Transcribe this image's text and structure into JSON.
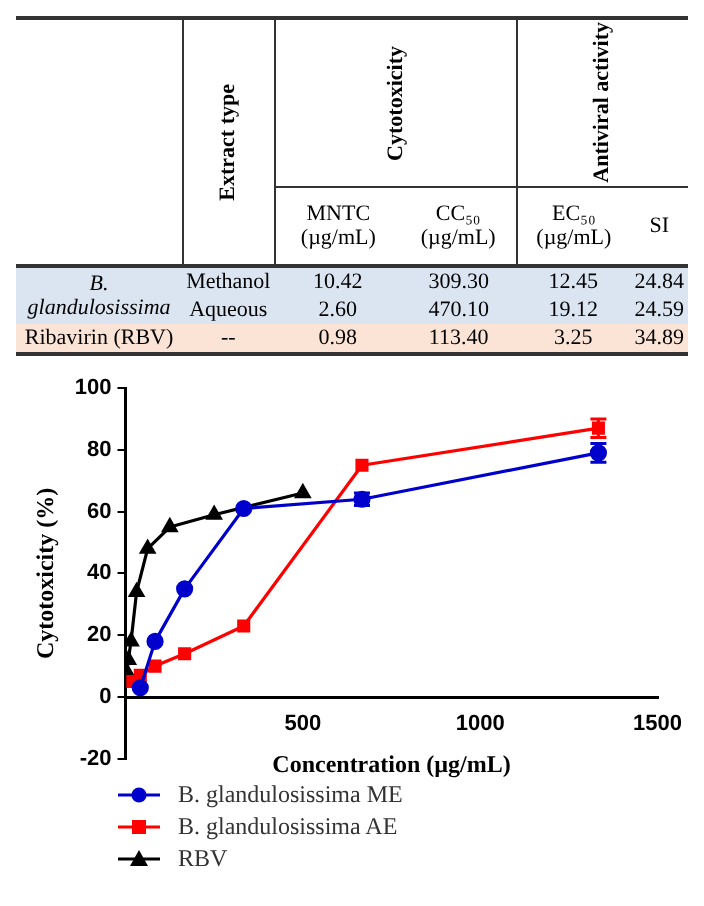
{
  "chart_data": [
    {
      "type": "other",
      "annotations": [
        "Extract type",
        "Cytotoxicity",
        "Antiviral activity",
        "MNTC (µg/mL)",
        "CC₅₀ (µg/mL)",
        "EC₅₀ (µg/mL)",
        "SI",
        "B. glandulosissima",
        "Methanol",
        "10.42",
        "309.30",
        "12.45",
        "24.84",
        "Aqueous",
        "2.60",
        "470.10",
        "19.12",
        "24.59",
        "Ribavirin (RBV)",
        "--",
        "0.98",
        "113.40",
        "3.25",
        "34.89"
      ]
    },
    {
      "type": "line",
      "xlabel": "Concentration (µg/mL)",
      "ylabel": "Cytotoxicity (%)",
      "xlim": [
        0,
        1500
      ],
      "xticks": [
        500,
        1000,
        1500
      ],
      "ylim": [
        -20,
        100
      ],
      "yticks": [
        -20,
        0,
        20,
        40,
        60,
        80,
        100
      ],
      "grid": false,
      "legend": "bottom",
      "series": [
        {
          "name": "B. glandulosissima ME",
          "color": "#0000cc",
          "marker": "circle",
          "x": [
            41.7,
            83.3,
            166.7,
            333.3,
            666.7,
            1333.3
          ],
          "values": [
            3,
            18,
            35,
            61,
            64,
            79
          ],
          "errors": [
            null,
            null,
            null,
            null,
            2,
            3
          ]
        },
        {
          "name": "B. glandulosissima AE",
          "color": "#ff0000",
          "marker": "square",
          "x": [
            20.8,
            41.7,
            83.3,
            166.7,
            333.3,
            666.7,
            1333.3
          ],
          "values": [
            5,
            7,
            10,
            14,
            23,
            75,
            87
          ],
          "errors": [
            null,
            null,
            null,
            null,
            null,
            null,
            3
          ]
        },
        {
          "name": "RBV",
          "color": "#000000",
          "marker": "triangle",
          "x": [
            3.9,
            7.8,
            15.6,
            31.25,
            62.5,
            125,
            250,
            500
          ],
          "values": [
            8,
            12,
            18,
            34,
            48,
            55,
            59,
            66
          ]
        }
      ]
    }
  ]
}
